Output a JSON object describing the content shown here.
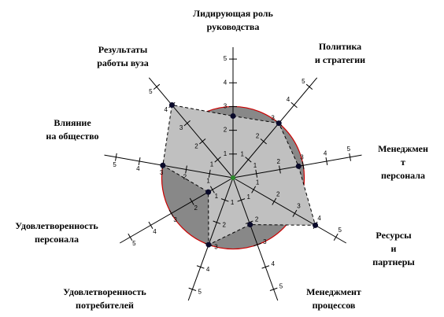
{
  "chart_data": {
    "type": "radar",
    "categories": [
      [
        "Лидирующая роль",
        "руководства"
      ],
      [
        "Политика",
        "и стратегии"
      ],
      [
        "Менеджмен",
        "т",
        "персонала"
      ],
      [
        "Ресурсы",
        "и",
        "партнеры"
      ],
      [
        "Менеджмент",
        "процессов"
      ],
      [
        "Удовлетворенность",
        "потребителей"
      ],
      [
        "Удовлетворенность",
        "персонала"
      ],
      [
        "Влияние",
        "на общество"
      ],
      [
        "Результаты",
        "работы вуза"
      ]
    ],
    "values": [
      2.6,
      3,
      2.8,
      4,
      2.1,
      3,
      1.2,
      3,
      4
    ],
    "reference": 3,
    "rlim": [
      0,
      5.5
    ],
    "rticks": [
      1,
      2,
      3,
      4,
      5
    ],
    "color": "#c0c0c0",
    "reference_fill": "#888888",
    "reference_stroke": "#cc0000"
  }
}
